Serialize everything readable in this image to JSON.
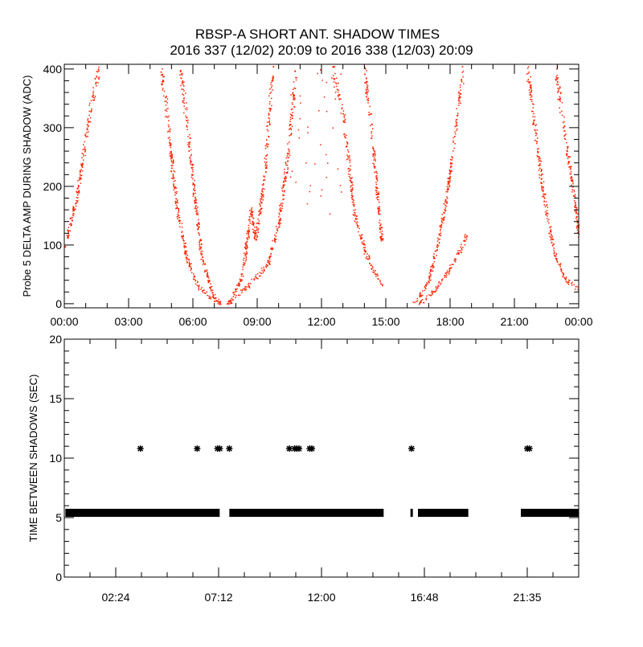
{
  "title": "RBSP-A SHORT ANT. SHADOW TIMES",
  "subtitle": "2016 337 (12/02) 20:09 to 2016 338 (12/03) 20:09",
  "colors": {
    "points": "#ff2200",
    "axes": "#000000",
    "markers": "#000000"
  },
  "chart_data": [
    {
      "type": "scatter",
      "ylabel": "Probe 5 DELTA AMP DURING SHADOW (ADC)",
      "xlabel": "",
      "xlim_hours": [
        0,
        24
      ],
      "ylim": [
        -7,
        408
      ],
      "x_ticks": [
        {
          "v": 0,
          "label": "00:00"
        },
        {
          "v": 3,
          "label": "03:00"
        },
        {
          "v": 6,
          "label": "06:00"
        },
        {
          "v": 9,
          "label": "09:00"
        },
        {
          "v": 12,
          "label": "12:00"
        },
        {
          "v": 15,
          "label": "15:00"
        },
        {
          "v": 18,
          "label": "18:00"
        },
        {
          "v": 21,
          "label": "21:00"
        },
        {
          "v": 24,
          "label": "00:00"
        }
      ],
      "y_ticks": [
        {
          "v": 0,
          "label": "0"
        },
        {
          "v": 100,
          "label": "100"
        },
        {
          "v": 200,
          "label": "200"
        },
        {
          "v": 300,
          "label": "300"
        },
        {
          "v": 400,
          "label": "400"
        }
      ],
      "curves_hour_adc": [
        [
          [
            0,
            100
          ],
          [
            0.5,
            170
          ],
          [
            0.9,
            260
          ],
          [
            1.2,
            330
          ],
          [
            1.6,
            400
          ]
        ],
        [
          [
            4.5,
            400
          ],
          [
            4.8,
            320
          ],
          [
            5.0,
            240
          ],
          [
            5.3,
            150
          ],
          [
            5.7,
            80
          ],
          [
            6.2,
            30
          ],
          [
            6.8,
            12
          ],
          [
            7.3,
            0
          ]
        ],
        [
          [
            5.4,
            400
          ],
          [
            5.8,
            280
          ],
          [
            6.1,
            170
          ],
          [
            6.4,
            80
          ],
          [
            6.7,
            40
          ],
          [
            7.0,
            10
          ],
          [
            7.3,
            0
          ]
        ],
        [
          [
            7.7,
            0
          ],
          [
            8.3,
            50
          ],
          [
            8.7,
            160
          ],
          [
            8.9,
            110
          ],
          [
            9.3,
            210
          ],
          [
            9.7,
            400
          ]
        ],
        [
          [
            7.6,
            0
          ],
          [
            8.2,
            20
          ],
          [
            8.8,
            40
          ],
          [
            9.5,
            70
          ],
          [
            10.0,
            140
          ],
          [
            10.4,
            250
          ],
          [
            10.8,
            400
          ]
        ],
        [
          [
            12.5,
            400
          ],
          [
            13.0,
            320
          ],
          [
            13.5,
            160
          ],
          [
            14.0,
            90
          ],
          [
            14.5,
            50
          ],
          [
            14.8,
            35
          ]
        ],
        [
          [
            14.0,
            400
          ],
          [
            14.3,
            300
          ],
          [
            14.6,
            180
          ],
          [
            14.8,
            110
          ]
        ],
        [
          [
            16.3,
            0
          ],
          [
            17.0,
            40
          ],
          [
            17.5,
            120
          ],
          [
            17.9,
            200
          ],
          [
            18.3,
            320
          ],
          [
            18.6,
            400
          ]
        ],
        [
          [
            16.5,
            0
          ],
          [
            17.2,
            20
          ],
          [
            17.8,
            50
          ],
          [
            18.3,
            80
          ],
          [
            18.8,
            120
          ]
        ],
        [
          [
            21.6,
            400
          ],
          [
            22.1,
            250
          ],
          [
            22.5,
            150
          ],
          [
            22.9,
            80
          ],
          [
            23.4,
            40
          ],
          [
            24,
            25
          ]
        ],
        [
          [
            22.9,
            400
          ],
          [
            23.3,
            300
          ],
          [
            23.7,
            200
          ],
          [
            24,
            120
          ]
        ]
      ],
      "sparse_region_hours": [
        10.5,
        13.0
      ],
      "sparse_region_adc": [
        150,
        400
      ]
    },
    {
      "type": "scatter",
      "ylabel": "TIME BETWEEN SHADOWS (SEC)",
      "xlabel": "",
      "xlim_hours": [
        0,
        24
      ],
      "ylim": [
        0,
        20
      ],
      "x_ticks": [
        {
          "v": 2.4,
          "label": "02:24"
        },
        {
          "v": 7.2,
          "label": "07:12"
        },
        {
          "v": 12,
          "label": "12:00"
        },
        {
          "v": 16.8,
          "label": "16:48"
        },
        {
          "v": 21.6,
          "label": "21:35"
        }
      ],
      "y_ticks": [
        {
          "v": 0,
          "label": "0"
        },
        {
          "v": 5,
          "label": "5"
        },
        {
          "v": 10,
          "label": "10"
        },
        {
          "v": 15,
          "label": "15"
        },
        {
          "v": 20,
          "label": "20"
        }
      ],
      "baseline_value": 5.4,
      "baseline_segments_hours": [
        [
          0.05,
          7.25
        ],
        [
          7.7,
          14.9
        ],
        [
          16.15,
          16.25
        ],
        [
          16.5,
          18.85
        ],
        [
          21.3,
          24
        ]
      ],
      "outlier_value": 10.8,
      "outlier_hours": [
        3.55,
        6.2,
        7.15,
        7.25,
        7.7,
        10.5,
        10.75,
        10.85,
        10.95,
        11.45,
        11.55,
        16.2,
        21.6,
        21.7
      ]
    }
  ]
}
